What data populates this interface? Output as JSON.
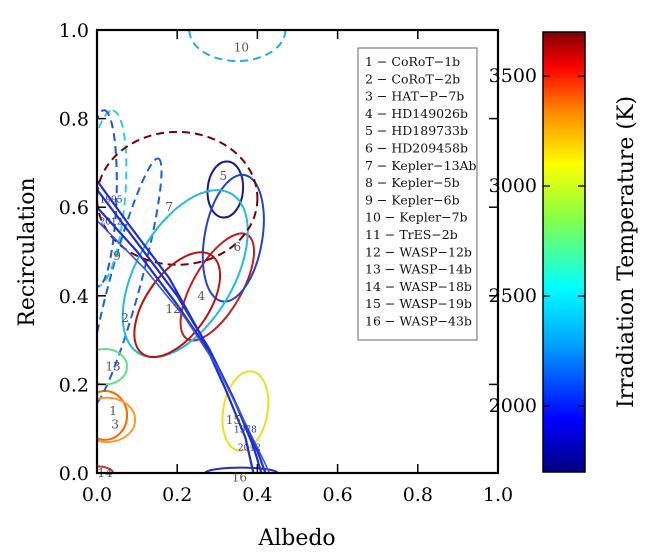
{
  "chart_data": {
    "type": "contour",
    "xlabel": "Albedo",
    "ylabel": "Recirculation",
    "xlim": [
      0.0,
      1.0
    ],
    "ylim": [
      0.0,
      1.0
    ],
    "xticks": [
      "0.0",
      "0.2",
      "0.4",
      "0.6",
      "0.8",
      "1.0"
    ],
    "yticks": [
      "0.0",
      "0.2",
      "0.4",
      "0.6",
      "0.8",
      "1.0"
    ],
    "colorbar": {
      "label": "Irradiation Temperature (K)",
      "range": [
        1700,
        3700
      ],
      "ticks": [
        "2000",
        "2500",
        "3000",
        "3500"
      ],
      "tick_values": [
        2000,
        2500,
        3000,
        3500
      ]
    },
    "legend": [
      "1 − CoRoT−1b",
      "2 − CoRoT−2b",
      "3 − HAT−P−7b",
      "4 − HD149026b",
      "5 − HD189733b",
      "6 − HD209458b",
      "7 − Kepler−13Ab",
      "8 − Kepler−5b",
      "9 − Kepler−6b",
      "10 − Kepler−7b",
      "11 − TrES−2b",
      "12 − WASP−12b",
      "13 − WASP−14b",
      "14 − WASP−18b",
      "15 − WASP−19b",
      "16 − WASP−43b"
    ],
    "contours": [
      {
        "id": "1",
        "label": "1",
        "color": "#ff6600",
        "dashed": false,
        "cx": 0.02,
        "cy": 0.13,
        "rx": 0.055,
        "ry": 0.055,
        "angle": 0
      },
      {
        "id": "2",
        "label": "2",
        "color": "#1f5fd6",
        "dashed": true,
        "cx": 0.07,
        "cy": 0.43,
        "rx": 0.32,
        "ry": 0.035,
        "angle": 75
      },
      {
        "id": "3",
        "label": "3",
        "color": "#ff9933",
        "dashed": false,
        "cx": 0.025,
        "cy": 0.12,
        "rx": 0.07,
        "ry": 0.05,
        "angle": 0
      },
      {
        "id": "4",
        "label": "4",
        "color": "#c02020",
        "dashed": false,
        "cx": 0.3,
        "cy": 0.42,
        "rx": 0.15,
        "ry": 0.055,
        "angle": 60
      },
      {
        "id": "5",
        "label": "5",
        "color": "#1a1a8c",
        "dashed": false,
        "cx": 0.32,
        "cy": 0.64,
        "rx": 0.07,
        "ry": 0.04,
        "angle": 85
      },
      {
        "id": "6",
        "label": "6",
        "color": "#2244cc",
        "dashed": false,
        "cx": 0.34,
        "cy": 0.53,
        "rx": 0.16,
        "ry": 0.065,
        "angle": 80
      },
      {
        "id": "7",
        "label": "7",
        "color": "#22bbdd",
        "dashed": false,
        "cx": 0.22,
        "cy": 0.45,
        "rx": 0.23,
        "ry": 0.11,
        "angle": 60
      },
      {
        "id": "8",
        "label": "8",
        "color": "#33ccdd",
        "dashed": true,
        "cx": 0.02,
        "cy": 0.62,
        "rx": 0.22,
        "ry": 0.045,
        "angle": 85
      },
      {
        "id": "9",
        "label": "9",
        "color": "#7a0000",
        "dashed": true,
        "cx": 0.2,
        "cy": 0.62,
        "rx": 0.2,
        "ry": 0.15,
        "angle": 0
      },
      {
        "id": "10",
        "label": "10",
        "color": "#22aaee",
        "dashed": true,
        "cx": 0.35,
        "cy": 1.0,
        "rx": 0.12,
        "ry": 0.07,
        "angle": 0
      },
      {
        "id": "11",
        "label": "11",
        "color": "#2255dd",
        "dashed": true,
        "cx": 0.01,
        "cy": 0.62,
        "rx": 0.22,
        "ry": 0.035,
        "angle": 88
      },
      {
        "id": "12",
        "label": "12",
        "color": "#bb1111",
        "dashed": false,
        "cx": 0.2,
        "cy": 0.38,
        "rx": 0.15,
        "ry": 0.07,
        "angle": 55
      },
      {
        "id": "13",
        "label": "13",
        "color": "#66dd88",
        "dashed": false,
        "cx": 0.02,
        "cy": 0.24,
        "rx": 0.055,
        "ry": 0.04,
        "angle": 0
      },
      {
        "id": "14",
        "label": "14",
        "color": "#cc3333",
        "dashed": false,
        "cx": 0.0,
        "cy": 0.0,
        "rx": 0.04,
        "ry": 0.015,
        "angle": 0
      },
      {
        "id": "15",
        "label": "15",
        "color": "#eedd22",
        "dashed": false,
        "cx": 0.37,
        "cy": 0.14,
        "rx": 0.1,
        "ry": 0.05,
        "angle": 80
      },
      {
        "id": "16",
        "label": "16",
        "color": "#2233bb",
        "dashed": false,
        "cx": 0.36,
        "cy": 0.0,
        "rx": 0.09,
        "ry": 0.012,
        "angle": 0
      }
    ],
    "annotations": [
      {
        "text": "1",
        "x": 0.04,
        "y": 0.14,
        "kind": "plain"
      },
      {
        "text": "2",
        "x": 0.07,
        "y": 0.35,
        "kind": "plain"
      },
      {
        "text": "3",
        "x": 0.045,
        "y": 0.11,
        "kind": "plain"
      },
      {
        "text": "4",
        "x": 0.26,
        "y": 0.4,
        "kind": "plain"
      },
      {
        "text": "5",
        "x": 0.315,
        "y": 0.67,
        "kind": "plain"
      },
      {
        "text": "6",
        "x": 0.35,
        "y": 0.51,
        "kind": "plain"
      },
      {
        "text": "7",
        "x": 0.18,
        "y": 0.6,
        "kind": "plain"
      },
      {
        "text": "9",
        "x": 0.05,
        "y": 0.49,
        "kind": "plain"
      },
      {
        "text": "10",
        "x": 0.36,
        "y": 0.96,
        "kind": "plain"
      },
      {
        "text": "12",
        "x": 0.19,
        "y": 0.37,
        "kind": "plain"
      },
      {
        "text": "13",
        "x": 0.04,
        "y": 0.24,
        "kind": "plain"
      },
      {
        "text": "14",
        "x": 0.02,
        "y": 0.0,
        "kind": "plain"
      },
      {
        "text": "15",
        "x": 0.34,
        "y": 0.12,
        "kind": "plain"
      },
      {
        "text": "16",
        "x": 0.355,
        "y": -0.01,
        "kind": "plain"
      },
      {
        "text": "1978",
        "x": 0.37,
        "y": 0.1,
        "kind": "blue"
      },
      {
        "text": "2012",
        "x": 0.38,
        "y": 0.06,
        "kind": "blue"
      },
      {
        "text": "1995",
        "x": 0.035,
        "y": 0.62,
        "kind": "blue"
      },
      {
        "text": "2012",
        "x": 0.035,
        "y": 0.57,
        "kind": "blue"
      }
    ],
    "bands": [
      {
        "color": "#1f2fc8",
        "width": 2.2,
        "points": [
          [
            0.0,
            0.64
          ],
          [
            0.1,
            0.52
          ],
          [
            0.2,
            0.4
          ],
          [
            0.28,
            0.28
          ],
          [
            0.34,
            0.17
          ],
          [
            0.39,
            0.06
          ],
          [
            0.41,
            0.0
          ]
        ]
      },
      {
        "color": "#1f2fc8",
        "width": 2.2,
        "points": [
          [
            0.0,
            0.6
          ],
          [
            0.1,
            0.5
          ],
          [
            0.2,
            0.38
          ],
          [
            0.29,
            0.26
          ],
          [
            0.35,
            0.15
          ],
          [
            0.4,
            0.05
          ],
          [
            0.42,
            0.0
          ]
        ]
      },
      {
        "color": "#1f2fc8",
        "width": 2.2,
        "points": [
          [
            0.0,
            0.66
          ],
          [
            0.08,
            0.56
          ],
          [
            0.18,
            0.44
          ],
          [
            0.26,
            0.31
          ],
          [
            0.32,
            0.19
          ],
          [
            0.37,
            0.08
          ],
          [
            0.39,
            0.0
          ]
        ]
      },
      {
        "color": "#3355ee",
        "width": 1.6,
        "points": [
          [
            0.0,
            0.57
          ],
          [
            0.12,
            0.46
          ],
          [
            0.22,
            0.35
          ],
          [
            0.3,
            0.24
          ],
          [
            0.36,
            0.13
          ],
          [
            0.42,
            0.02
          ],
          [
            0.43,
            0.0
          ]
        ]
      }
    ]
  }
}
